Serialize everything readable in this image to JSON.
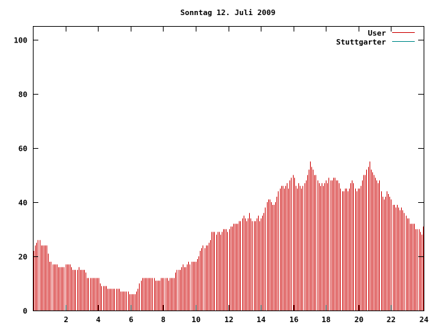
{
  "chart_data": {
    "type": "bar",
    "title": "Sonntag 12. Juli 2009",
    "xlabel": "",
    "ylabel": "",
    "xlim": [
      0,
      24
    ],
    "ylim": [
      0,
      105
    ],
    "x_ticks": [
      2,
      4,
      6,
      8,
      10,
      12,
      14,
      16,
      18,
      20,
      22,
      24
    ],
    "y_ticks": [
      0,
      20,
      40,
      60,
      80,
      100
    ],
    "grid": false,
    "legend_position": "top-right",
    "series": [
      {
        "name": "User",
        "color": "#cc0000",
        "values": [
          22,
          24,
          25,
          26,
          26,
          24,
          24,
          24,
          24,
          24,
          21,
          18,
          18,
          17,
          17,
          17,
          17,
          16,
          16,
          16,
          16,
          16,
          17,
          17,
          17,
          17,
          16,
          15,
          15,
          15,
          15,
          16,
          15,
          15,
          15,
          15,
          14,
          12,
          12,
          12,
          12,
          12,
          12,
          12,
          12,
          12,
          10,
          9,
          9,
          9,
          9,
          8,
          8,
          8,
          8,
          8,
          8,
          8,
          8,
          8,
          7,
          7,
          7,
          7,
          7,
          7,
          6,
          6,
          6,
          6,
          6,
          7,
          8,
          10,
          11,
          12,
          12,
          12,
          12,
          12,
          12,
          12,
          12,
          12,
          11,
          11,
          11,
          11,
          12,
          12,
          12,
          12,
          12,
          11,
          12,
          12,
          12,
          12,
          14,
          15,
          15,
          15,
          16,
          17,
          16,
          16,
          17,
          18,
          17,
          18,
          18,
          18,
          18,
          19,
          20,
          22,
          23,
          24,
          23,
          24,
          24,
          25,
          26,
          29,
          29,
          29,
          28,
          29,
          29,
          28,
          29,
          30,
          30,
          30,
          29,
          30,
          31,
          31,
          32,
          32,
          32,
          32,
          33,
          33,
          34,
          35,
          34,
          33,
          34,
          36,
          34,
          33,
          33,
          33,
          34,
          35,
          33,
          34,
          35,
          36,
          38,
          40,
          41,
          41,
          40,
          39,
          39,
          40,
          42,
          44,
          45,
          46,
          46,
          45,
          46,
          47,
          45,
          48,
          49,
          50,
          49,
          46,
          45,
          47,
          46,
          45,
          46,
          47,
          48,
          50,
          52,
          55,
          53,
          52,
          50,
          50,
          48,
          47,
          46,
          47,
          46,
          47,
          48,
          47,
          49,
          48,
          48,
          49,
          49,
          48,
          48,
          47,
          45,
          44,
          44,
          45,
          45,
          44,
          45,
          47,
          48,
          47,
          45,
          44,
          45,
          45,
          46,
          48,
          50,
          50,
          52,
          53,
          55,
          52,
          51,
          50,
          49,
          48,
          47,
          48,
          44,
          42,
          41,
          42,
          44,
          43,
          42,
          41,
          39,
          39,
          38,
          39,
          38,
          37,
          38,
          37,
          36,
          35,
          34,
          34,
          32,
          32,
          32,
          32,
          30,
          30,
          30,
          29,
          28,
          31
        ]
      },
      {
        "name": "Stuttgarter",
        "color": "#008b8b",
        "values": []
      }
    ]
  }
}
